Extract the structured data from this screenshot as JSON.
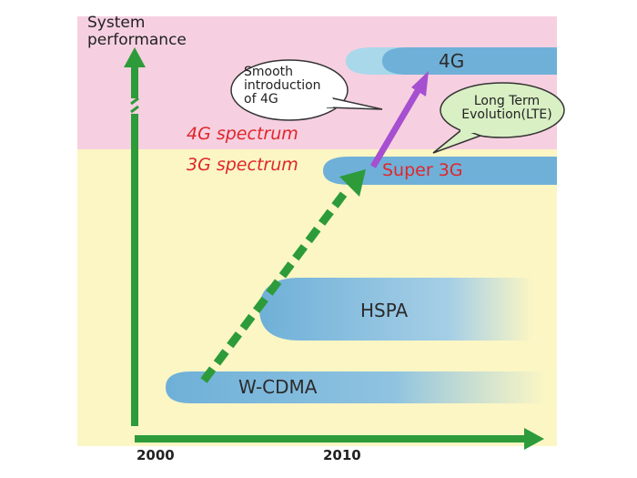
{
  "axes": {
    "y_title_line1": "System",
    "y_title_line2": "performance",
    "x_ticks": [
      "2000",
      "2010"
    ]
  },
  "spectrum": {
    "upper": "4G spectrum",
    "lower": "3G spectrum"
  },
  "technologies": {
    "wcdma": "W-CDMA",
    "hspa": "HSPA",
    "super3g": "Super 3G",
    "g4": "4G"
  },
  "callouts": {
    "smooth_line1": "Smooth",
    "smooth_line2": "introduction",
    "smooth_line3": "of 4G",
    "lte_line1": "Long Term",
    "lte_line2": "Evolution(LTE)"
  },
  "colors": {
    "upper_band": "#f6d0e0",
    "lower_band": "#fbf6c4",
    "axis_arrow": "#2d9b3a",
    "evolution_arrow": "#a64fd0",
    "spectrum_text": "#e0262b",
    "lte_bubble": "#d9efc4"
  }
}
